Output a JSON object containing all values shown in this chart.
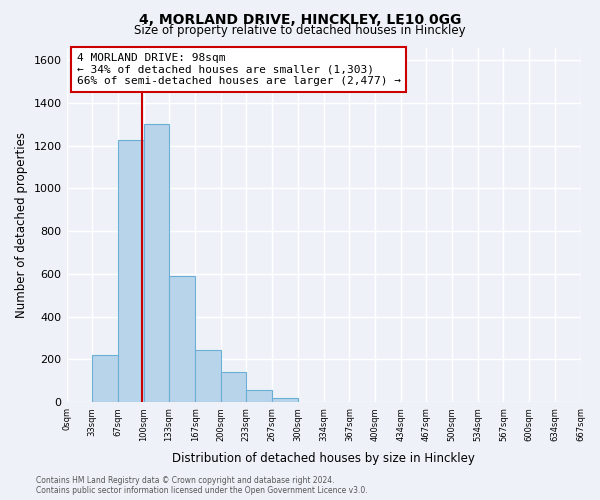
{
  "title": "4, MORLAND DRIVE, HINCKLEY, LE10 0GG",
  "subtitle": "Size of property relative to detached houses in Hinckley",
  "xlabel": "Distribution of detached houses by size in Hinckley",
  "ylabel": "Number of detached properties",
  "bar_edges": [
    0,
    33,
    67,
    100,
    133,
    167,
    200,
    233,
    267,
    300,
    334,
    367,
    400,
    434,
    467,
    500,
    534,
    567,
    600,
    634,
    667
  ],
  "bar_heights": [
    0,
    220,
    1225,
    1300,
    590,
    245,
    140,
    55,
    20,
    0,
    0,
    0,
    0,
    0,
    0,
    0,
    0,
    0,
    0,
    0
  ],
  "bar_color": "#b8d4ea",
  "bar_edge_color": "#6baed6",
  "vline_x": 98,
  "vline_color": "#cc0000",
  "ylim": [
    0,
    1660
  ],
  "yticks": [
    0,
    200,
    400,
    600,
    800,
    1000,
    1200,
    1400,
    1600
  ],
  "annotation_text_line1": "4 MORLAND DRIVE: 98sqm",
  "annotation_text_line2": "← 34% of detached houses are smaller (1,303)",
  "annotation_text_line3": "66% of semi-detached houses are larger (2,477) →",
  "footer_line1": "Contains HM Land Registry data © Crown copyright and database right 2024.",
  "footer_line2": "Contains public sector information licensed under the Open Government Licence v3.0.",
  "tick_labels": [
    "0sqm",
    "33sqm",
    "67sqm",
    "100sqm",
    "133sqm",
    "167sqm",
    "200sqm",
    "233sqm",
    "267sqm",
    "300sqm",
    "334sqm",
    "367sqm",
    "400sqm",
    "434sqm",
    "467sqm",
    "500sqm",
    "534sqm",
    "567sqm",
    "600sqm",
    "634sqm",
    "667sqm"
  ],
  "background_color": "#eef2f8",
  "grid_color": "#ffffff",
  "title_fontsize": 10,
  "subtitle_fontsize": 8.5,
  "ylabel_text": "Number of detached properties"
}
